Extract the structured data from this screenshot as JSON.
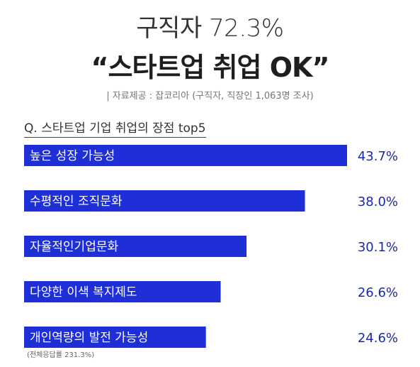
{
  "header": {
    "title_line1": "구직자 72.3%",
    "title_line2": "“스타트업 취업 OK”",
    "source": "| 자료제공 : 잡코리아 (구직자, 직장인 1,063명 조사)"
  },
  "chart_data": {
    "type": "bar",
    "orientation": "horizontal",
    "title": "Q. 스타트업 기업 취업의 장점 top5",
    "categories": [
      "높은 성장 가능성",
      "수평적인 조직문화",
      "자율적인기업문화",
      "다양한 이색 복지제도",
      "개인역량의 발전 가능성"
    ],
    "values": [
      43.7,
      38.0,
      30.1,
      26.6,
      24.6
    ],
    "value_labels": [
      "43.7%",
      "38.0%",
      "30.1%",
      "26.6%",
      "24.6%"
    ],
    "xlim": [
      0,
      43.7
    ],
    "bar_color": "#1f2fd8",
    "grid": false,
    "footnote": "(전체응답률 231.3%)"
  }
}
